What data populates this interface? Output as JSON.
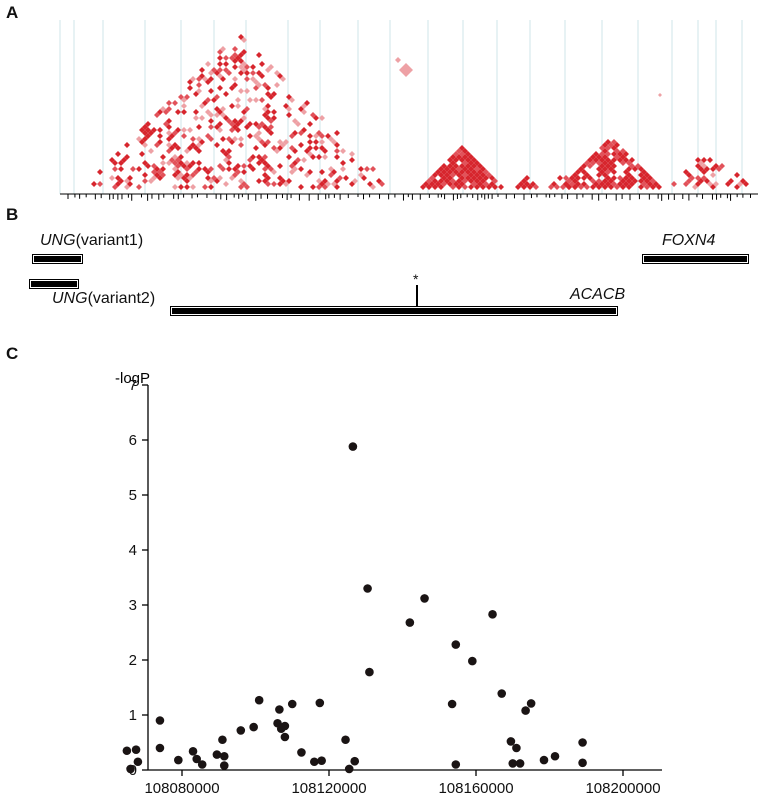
{
  "panels": {
    "a": "A",
    "b": "B",
    "c": "C"
  },
  "genes": {
    "ung_v1_name": "UNG",
    "ung_v1_suffix": "(variant1)",
    "ung_v2_name": "UNG",
    "ung_v2_suffix": "(variant2)",
    "acacb": "ACACB",
    "foxn4": "FOXN4",
    "marker": "*"
  },
  "colors": {
    "ld_strong": "#d7262e",
    "ld_medium": "#e2525a",
    "ld_light": "#eea1a5",
    "grid_line": "#cfe5e8",
    "points": "#1a1414"
  },
  "chart_data": {
    "type": "scatter",
    "title": "",
    "ylabel": "-logP",
    "xlabel": "",
    "xlim": [
      108055000,
      108210000
    ],
    "ylim": [
      0,
      7
    ],
    "xticks": [
      108080000,
      108120000,
      108160000,
      108200000
    ],
    "yticks": [
      0,
      1,
      2,
      3,
      4,
      5,
      6,
      7
    ],
    "series": [
      {
        "points": [
          [
            108065000,
            0.35
          ],
          [
            108066000,
            0.02
          ],
          [
            108067500,
            0.37
          ],
          [
            108068000,
            0.15
          ],
          [
            108074000,
            0.9
          ],
          [
            108074000,
            0.4
          ],
          [
            108079000,
            0.18
          ],
          [
            108083000,
            0.34
          ],
          [
            108084000,
            0.2
          ],
          [
            108085500,
            0.1
          ],
          [
            108089500,
            0.28
          ],
          [
            108091000,
            0.55
          ],
          [
            108091500,
            0.25
          ],
          [
            108091500,
            0.08
          ],
          [
            108096000,
            0.72
          ],
          [
            108099500,
            0.78
          ],
          [
            108101000,
            1.27
          ],
          [
            108106000,
            0.85
          ],
          [
            108106500,
            1.1
          ],
          [
            108107000,
            0.75
          ],
          [
            108108000,
            0.8
          ],
          [
            108108000,
            0.6
          ],
          [
            108110000,
            1.2
          ],
          [
            108112500,
            0.32
          ],
          [
            108116000,
            0.15
          ],
          [
            108117500,
            1.22
          ],
          [
            108118000,
            0.17
          ],
          [
            108124500,
            0.55
          ],
          [
            108125500,
            0.02
          ],
          [
            108126500,
            5.88
          ],
          [
            108127000,
            0.16
          ],
          [
            108130500,
            3.3
          ],
          [
            108131000,
            1.78
          ],
          [
            108142000,
            2.68
          ],
          [
            108146000,
            3.12
          ],
          [
            108153500,
            1.2
          ],
          [
            108154500,
            2.28
          ],
          [
            108154500,
            0.1
          ],
          [
            108159000,
            1.98
          ],
          [
            108164500,
            2.83
          ],
          [
            108167000,
            1.39
          ],
          [
            108169500,
            0.52
          ],
          [
            108170000,
            0.12
          ],
          [
            108171000,
            0.4
          ],
          [
            108172000,
            0.12
          ],
          [
            108173500,
            1.08
          ],
          [
            108175000,
            1.21
          ],
          [
            108178500,
            0.18
          ],
          [
            108181500,
            0.25
          ],
          [
            108189000,
            0.5
          ],
          [
            108189000,
            0.13
          ]
        ]
      }
    ]
  }
}
